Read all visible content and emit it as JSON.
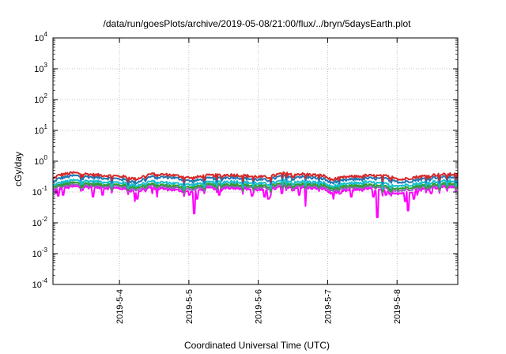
{
  "chart_data": {
    "type": "line",
    "title": "/data/run/goesPlots/archive/2019-05-08/21:00/flux/../bryn/5daysEarth.plot",
    "xlabel": "Coordinated Universal Time (UTC)",
    "ylabel": "cGy/day",
    "y_scale": "log",
    "ylim": [
      0.0001,
      10000
    ],
    "y_ticks": [
      {
        "base": "10",
        "exp": "-4"
      },
      {
        "base": "10",
        "exp": "-3"
      },
      {
        "base": "10",
        "exp": "-2"
      },
      {
        "base": "10",
        "exp": "-1"
      },
      {
        "base": "10",
        "exp": "0"
      },
      {
        "base": "10",
        "exp": "1"
      },
      {
        "base": "10",
        "exp": "2"
      },
      {
        "base": "10",
        "exp": "3"
      },
      {
        "base": "10",
        "exp": "4"
      }
    ],
    "xlim": [
      "2019-05-03 01:00",
      "2019-05-08 21:00"
    ],
    "x_ticks": [
      "2019-5-4",
      "2019-5-5",
      "2019-5-6",
      "2019-5-7",
      "2019-5-8"
    ],
    "grid": true,
    "x_day_start": "2019-05-03 01:00",
    "x_day_end": "2019-05-08 21:00",
    "series": [
      {
        "color": "#d62728",
        "base": 0.38,
        "knots": [
          [
            0,
            0.26
          ],
          [
            0.05,
            0.32
          ],
          [
            0.1,
            0.36
          ],
          [
            0.3,
            0.42
          ],
          [
            0.6,
            0.36
          ],
          [
            0.8,
            0.34
          ],
          [
            1.0,
            0.32
          ],
          [
            1.2,
            0.26
          ],
          [
            1.4,
            0.38
          ],
          [
            1.7,
            0.36
          ],
          [
            2.0,
            0.28
          ],
          [
            2.2,
            0.34
          ],
          [
            2.6,
            0.36
          ],
          [
            2.9,
            0.32
          ],
          [
            3.1,
            0.3
          ],
          [
            3.3,
            0.4
          ],
          [
            3.6,
            0.38
          ],
          [
            3.9,
            0.34
          ],
          [
            4.0,
            0.25
          ],
          [
            4.2,
            0.3
          ],
          [
            4.5,
            0.34
          ],
          [
            4.9,
            0.32
          ],
          [
            5.0,
            0.25
          ],
          [
            5.2,
            0.3
          ],
          [
            5.5,
            0.36
          ],
          [
            5.83,
            0.38
          ]
        ],
        "dips": []
      },
      {
        "color": "#1f77b4",
        "base": 0.3,
        "knots": [
          [
            0,
            0.2
          ],
          [
            0.05,
            0.25
          ],
          [
            0.1,
            0.28
          ],
          [
            0.3,
            0.34
          ],
          [
            0.6,
            0.3
          ],
          [
            0.8,
            0.28
          ],
          [
            1.0,
            0.26
          ],
          [
            1.2,
            0.2
          ],
          [
            1.4,
            0.31
          ],
          [
            1.7,
            0.3
          ],
          [
            2.0,
            0.22
          ],
          [
            2.2,
            0.27
          ],
          [
            2.6,
            0.3
          ],
          [
            2.9,
            0.26
          ],
          [
            3.1,
            0.24
          ],
          [
            3.3,
            0.33
          ],
          [
            3.6,
            0.31
          ],
          [
            3.9,
            0.27
          ],
          [
            4.0,
            0.2
          ],
          [
            4.2,
            0.24
          ],
          [
            4.5,
            0.28
          ],
          [
            4.9,
            0.26
          ],
          [
            5.0,
            0.2
          ],
          [
            5.2,
            0.24
          ],
          [
            5.5,
            0.3
          ],
          [
            5.83,
            0.31
          ]
        ],
        "dips": []
      },
      {
        "color": "#17becf",
        "base": 0.22,
        "knots": [
          [
            0,
            0.16
          ],
          [
            0.1,
            0.2
          ],
          [
            0.3,
            0.24
          ],
          [
            0.6,
            0.22
          ],
          [
            1.0,
            0.2
          ],
          [
            1.2,
            0.16
          ],
          [
            1.4,
            0.22
          ],
          [
            2.0,
            0.17
          ],
          [
            2.2,
            0.2
          ],
          [
            2.6,
            0.22
          ],
          [
            3.1,
            0.18
          ],
          [
            3.3,
            0.23
          ],
          [
            3.9,
            0.2
          ],
          [
            4.0,
            0.15
          ],
          [
            4.2,
            0.18
          ],
          [
            4.5,
            0.21
          ],
          [
            5.0,
            0.16
          ],
          [
            5.2,
            0.18
          ],
          [
            5.5,
            0.22
          ],
          [
            5.83,
            0.23
          ]
        ],
        "dips": []
      },
      {
        "color": "#2ca02c",
        "base": 0.18,
        "knots": [
          [
            0,
            0.14
          ],
          [
            0.1,
            0.17
          ],
          [
            0.3,
            0.2
          ],
          [
            0.6,
            0.18
          ],
          [
            1.0,
            0.17
          ],
          [
            1.2,
            0.14
          ],
          [
            1.4,
            0.18
          ],
          [
            2.0,
            0.14
          ],
          [
            2.2,
            0.17
          ],
          [
            2.6,
            0.18
          ],
          [
            3.1,
            0.15
          ],
          [
            3.3,
            0.19
          ],
          [
            3.9,
            0.17
          ],
          [
            4.0,
            0.13
          ],
          [
            4.2,
            0.15
          ],
          [
            4.5,
            0.17
          ],
          [
            5.0,
            0.13
          ],
          [
            5.2,
            0.15
          ],
          [
            5.5,
            0.18
          ],
          [
            5.83,
            0.19
          ]
        ],
        "dips": []
      },
      {
        "color": "#9467bd",
        "base": 0.16,
        "knots": [
          [
            0,
            0.12
          ],
          [
            0.1,
            0.15
          ],
          [
            0.3,
            0.17
          ],
          [
            0.6,
            0.16
          ],
          [
            1.0,
            0.15
          ],
          [
            1.2,
            0.12
          ],
          [
            1.4,
            0.16
          ],
          [
            2.0,
            0.12
          ],
          [
            2.2,
            0.15
          ],
          [
            2.6,
            0.16
          ],
          [
            3.1,
            0.13
          ],
          [
            3.3,
            0.17
          ],
          [
            3.9,
            0.15
          ],
          [
            4.0,
            0.11
          ],
          [
            4.2,
            0.13
          ],
          [
            4.5,
            0.15
          ],
          [
            5.0,
            0.11
          ],
          [
            5.2,
            0.13
          ],
          [
            5.5,
            0.16
          ],
          [
            5.83,
            0.17
          ]
        ],
        "dips": []
      },
      {
        "color": "#ff00ff",
        "base": 0.14,
        "knots": [
          [
            0,
            0.11
          ],
          [
            0.1,
            0.13
          ],
          [
            0.3,
            0.15
          ],
          [
            0.6,
            0.14
          ],
          [
            1.0,
            0.13
          ],
          [
            1.2,
            0.1
          ],
          [
            1.4,
            0.14
          ],
          [
            2.0,
            0.1
          ],
          [
            2.2,
            0.13
          ],
          [
            2.6,
            0.14
          ],
          [
            3.1,
            0.11
          ],
          [
            3.3,
            0.15
          ],
          [
            3.9,
            0.13
          ],
          [
            4.0,
            0.09
          ],
          [
            4.2,
            0.11
          ],
          [
            4.5,
            0.13
          ],
          [
            5.0,
            0.09
          ],
          [
            5.2,
            0.11
          ],
          [
            5.5,
            0.14
          ],
          [
            5.83,
            0.15
          ]
        ],
        "dips": [
          [
            0.04,
            0.09
          ],
          [
            0.08,
            0.075
          ],
          [
            0.15,
            0.08
          ],
          [
            0.58,
            0.07
          ],
          [
            0.72,
            0.08
          ],
          [
            1.18,
            0.05
          ],
          [
            1.22,
            0.06
          ],
          [
            1.43,
            0.09
          ],
          [
            1.5,
            0.07
          ],
          [
            1.97,
            0.08
          ],
          [
            2.03,
            0.02
          ],
          [
            2.08,
            0.06
          ],
          [
            2.4,
            0.08
          ],
          [
            2.87,
            0.075
          ],
          [
            3.05,
            0.07
          ],
          [
            3.1,
            0.06
          ],
          [
            3.12,
            0.065
          ],
          [
            3.3,
            0.09
          ],
          [
            3.55,
            0.08
          ],
          [
            3.64,
            0.035
          ],
          [
            4.04,
            0.06
          ],
          [
            4.15,
            0.09
          ],
          [
            4.3,
            0.07
          ],
          [
            4.62,
            0.07
          ],
          [
            4.67,
            0.015
          ],
          [
            4.8,
            0.08
          ],
          [
            5.08,
            0.05
          ],
          [
            5.12,
            0.025
          ],
          [
            5.2,
            0.06
          ],
          [
            5.25,
            0.08
          ],
          [
            5.45,
            0.09
          ]
        ]
      }
    ]
  }
}
